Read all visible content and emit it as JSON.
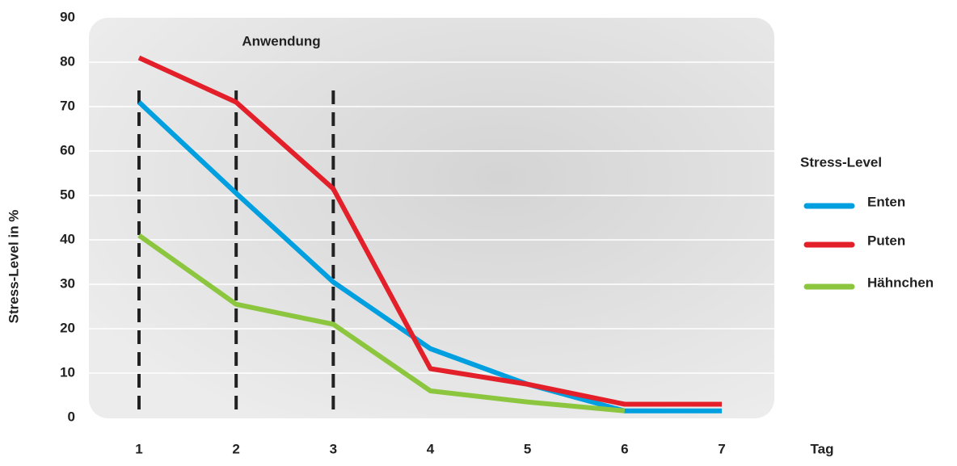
{
  "chart_data": {
    "type": "line",
    "y_label": "Stress-Level in %",
    "x_label": "Tag",
    "annotation": "Anwendung",
    "application_days": [
      1,
      2,
      3
    ],
    "legend_title": "Stress-Level",
    "legend_position": "right",
    "x": [
      1,
      2,
      3,
      4,
      5,
      6,
      7
    ],
    "xlim": [
      1,
      7
    ],
    "ylim": [
      0,
      90
    ],
    "yticks": [
      0,
      10,
      20,
      30,
      40,
      50,
      60,
      70,
      80,
      90
    ],
    "grid": true,
    "series": [
      {
        "name": "Enten",
        "color": "#009fe0",
        "values": [
          71,
          50.5,
          30.5,
          15.5,
          7.5,
          1.5,
          1.5
        ]
      },
      {
        "name": "Puten",
        "color": "#e3202a",
        "values": [
          81,
          71,
          51.5,
          11,
          7.5,
          3,
          3
        ]
      },
      {
        "name": "Hähnchen",
        "color": "#8cc63f",
        "values": [
          41,
          25.5,
          21,
          6,
          3.5,
          1.5,
          null
        ]
      }
    ]
  }
}
